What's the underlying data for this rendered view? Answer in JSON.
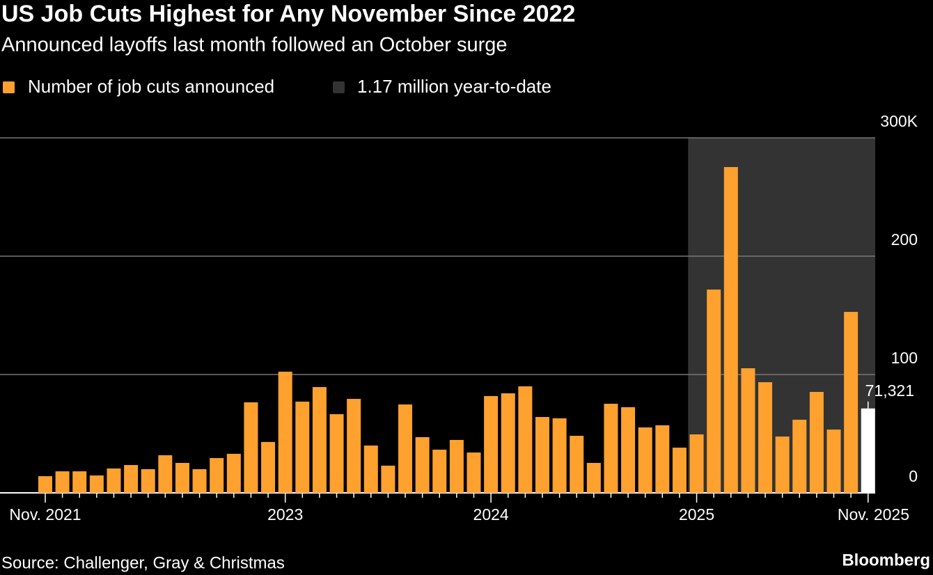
{
  "chart_data": {
    "type": "bar",
    "title": "US Job Cuts Highest for Any November Since 2022",
    "subtitle": "Announced layoffs last month followed an October surge",
    "source": "Source: Challenger, Gray & Christmas",
    "brand": "Bloomberg",
    "categories": [
      "Nov. 2021",
      null,
      null,
      null,
      null,
      null,
      null,
      null,
      null,
      null,
      null,
      null,
      null,
      null,
      "2023",
      null,
      null,
      null,
      null,
      null,
      null,
      null,
      null,
      null,
      null,
      null,
      "2024",
      null,
      null,
      null,
      null,
      null,
      null,
      null,
      null,
      null,
      null,
      null,
      "2025",
      null,
      null,
      null,
      null,
      null,
      null,
      null,
      null,
      null,
      "Nov. 2025"
    ],
    "series": [
      {
        "name": "Number of job cuts announced",
        "color": "#ffa12e",
        "latest_color": "#ffffff",
        "values": [
          14.1,
          18.2,
          18.2,
          14.7,
          20.6,
          23.5,
          20.0,
          31.8,
          25.3,
          20.0,
          29.4,
          33.0,
          76.5,
          43.0,
          102.4,
          77.1,
          89.4,
          66.5,
          79.4,
          40.0,
          23.0,
          74.7,
          47.1,
          36.5,
          44.7,
          34.1,
          81.8,
          84.1,
          90.0,
          64.1,
          63.0,
          48.2,
          25.3,
          75.3,
          72.4,
          55.3,
          57.1,
          38.2,
          49.4,
          171.8,
          275.3,
          105.3,
          93.5,
          47.6,
          61.8,
          85.3,
          53.5,
          152.9,
          71.321
        ],
        "value_labels": {
          "48": "71,321"
        }
      }
    ],
    "highlight": {
      "name": "1.17 million year-to-date",
      "color": "#333333",
      "start": "2025"
    },
    "ylim": [
      0,
      300
    ],
    "yticks": [
      0,
      100,
      200,
      {
        "value": 300,
        "label": "300K"
      }
    ],
    "grid": true
  }
}
